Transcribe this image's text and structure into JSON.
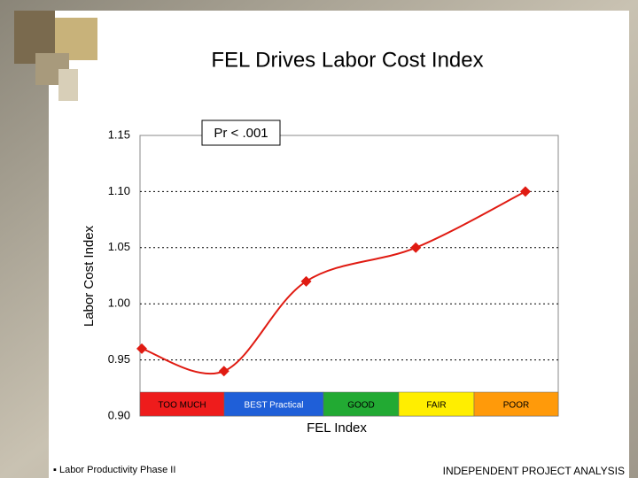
{
  "chart_data": {
    "type": "line",
    "title": "FEL Drives Labor Cost Index",
    "annotation": "Pr < .001",
    "y_label": "Labor Cost Index",
    "x_label": "FEL Index",
    "x": [
      3,
      4.5,
      6,
      8,
      10
    ],
    "series": [
      {
        "name": "Labor Cost Index",
        "color": "#e01b12",
        "values": [
          0.96,
          0.94,
          1.02,
          1.05,
          1.1
        ]
      }
    ],
    "xlim": [
      3,
      10.6
    ],
    "ylim": [
      0.9,
      1.15
    ],
    "yticks": [
      {
        "value": 0.9,
        "label": "0.90"
      },
      0.95,
      {
        "value": 1.0,
        "label": "1.00"
      },
      1.05,
      {
        "value": 1.1,
        "label": "1.10"
      },
      1.15
    ],
    "grid": true,
    "bands": [
      {
        "label": "TOO MUCH",
        "color": "#ee1c1c"
      },
      {
        "label": "BEST Practical",
        "color": "#1f5fd8"
      },
      {
        "label": "GOOD",
        "color": "#22aa33"
      },
      {
        "label": "FAIR",
        "color": "#ffee00"
      },
      {
        "label": "POOR",
        "color": "#ff9a0a"
      }
    ]
  },
  "footer": {
    "left": "▪ Labor Productivity Phase II",
    "right": "INDEPENDENT PROJECT ANALYSIS"
  }
}
